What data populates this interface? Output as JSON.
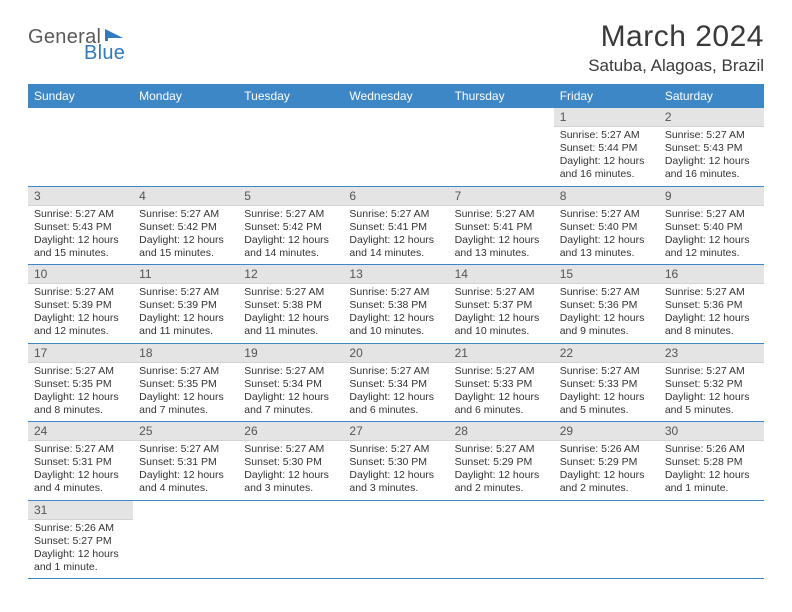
{
  "logo": {
    "part1": "General",
    "part2": "Blue"
  },
  "header": {
    "month_title": "March 2024",
    "location": "Satuba, Alagoas, Brazil"
  },
  "colors": {
    "header_bg": "#3d87c7",
    "day_num_bg": "#e4e4e4",
    "border": "#3d87c7",
    "logo_gray": "#5a5a5a",
    "logo_blue": "#2f7ac0"
  },
  "weekdays": [
    "Sunday",
    "Monday",
    "Tuesday",
    "Wednesday",
    "Thursday",
    "Friday",
    "Saturday"
  ],
  "weeks": [
    [
      null,
      null,
      null,
      null,
      null,
      {
        "n": "1",
        "sunrise": "Sunrise: 5:27 AM",
        "sunset": "Sunset: 5:44 PM",
        "daylight": "Daylight: 12 hours and 16 minutes."
      },
      {
        "n": "2",
        "sunrise": "Sunrise: 5:27 AM",
        "sunset": "Sunset: 5:43 PM",
        "daylight": "Daylight: 12 hours and 16 minutes."
      }
    ],
    [
      {
        "n": "3",
        "sunrise": "Sunrise: 5:27 AM",
        "sunset": "Sunset: 5:43 PM",
        "daylight": "Daylight: 12 hours and 15 minutes."
      },
      {
        "n": "4",
        "sunrise": "Sunrise: 5:27 AM",
        "sunset": "Sunset: 5:42 PM",
        "daylight": "Daylight: 12 hours and 15 minutes."
      },
      {
        "n": "5",
        "sunrise": "Sunrise: 5:27 AM",
        "sunset": "Sunset: 5:42 PM",
        "daylight": "Daylight: 12 hours and 14 minutes."
      },
      {
        "n": "6",
        "sunrise": "Sunrise: 5:27 AM",
        "sunset": "Sunset: 5:41 PM",
        "daylight": "Daylight: 12 hours and 14 minutes."
      },
      {
        "n": "7",
        "sunrise": "Sunrise: 5:27 AM",
        "sunset": "Sunset: 5:41 PM",
        "daylight": "Daylight: 12 hours and 13 minutes."
      },
      {
        "n": "8",
        "sunrise": "Sunrise: 5:27 AM",
        "sunset": "Sunset: 5:40 PM",
        "daylight": "Daylight: 12 hours and 13 minutes."
      },
      {
        "n": "9",
        "sunrise": "Sunrise: 5:27 AM",
        "sunset": "Sunset: 5:40 PM",
        "daylight": "Daylight: 12 hours and 12 minutes."
      }
    ],
    [
      {
        "n": "10",
        "sunrise": "Sunrise: 5:27 AM",
        "sunset": "Sunset: 5:39 PM",
        "daylight": "Daylight: 12 hours and 12 minutes."
      },
      {
        "n": "11",
        "sunrise": "Sunrise: 5:27 AM",
        "sunset": "Sunset: 5:39 PM",
        "daylight": "Daylight: 12 hours and 11 minutes."
      },
      {
        "n": "12",
        "sunrise": "Sunrise: 5:27 AM",
        "sunset": "Sunset: 5:38 PM",
        "daylight": "Daylight: 12 hours and 11 minutes."
      },
      {
        "n": "13",
        "sunrise": "Sunrise: 5:27 AM",
        "sunset": "Sunset: 5:38 PM",
        "daylight": "Daylight: 12 hours and 10 minutes."
      },
      {
        "n": "14",
        "sunrise": "Sunrise: 5:27 AM",
        "sunset": "Sunset: 5:37 PM",
        "daylight": "Daylight: 12 hours and 10 minutes."
      },
      {
        "n": "15",
        "sunrise": "Sunrise: 5:27 AM",
        "sunset": "Sunset: 5:36 PM",
        "daylight": "Daylight: 12 hours and 9 minutes."
      },
      {
        "n": "16",
        "sunrise": "Sunrise: 5:27 AM",
        "sunset": "Sunset: 5:36 PM",
        "daylight": "Daylight: 12 hours and 8 minutes."
      }
    ],
    [
      {
        "n": "17",
        "sunrise": "Sunrise: 5:27 AM",
        "sunset": "Sunset: 5:35 PM",
        "daylight": "Daylight: 12 hours and 8 minutes."
      },
      {
        "n": "18",
        "sunrise": "Sunrise: 5:27 AM",
        "sunset": "Sunset: 5:35 PM",
        "daylight": "Daylight: 12 hours and 7 minutes."
      },
      {
        "n": "19",
        "sunrise": "Sunrise: 5:27 AM",
        "sunset": "Sunset: 5:34 PM",
        "daylight": "Daylight: 12 hours and 7 minutes."
      },
      {
        "n": "20",
        "sunrise": "Sunrise: 5:27 AM",
        "sunset": "Sunset: 5:34 PM",
        "daylight": "Daylight: 12 hours and 6 minutes."
      },
      {
        "n": "21",
        "sunrise": "Sunrise: 5:27 AM",
        "sunset": "Sunset: 5:33 PM",
        "daylight": "Daylight: 12 hours and 6 minutes."
      },
      {
        "n": "22",
        "sunrise": "Sunrise: 5:27 AM",
        "sunset": "Sunset: 5:33 PM",
        "daylight": "Daylight: 12 hours and 5 minutes."
      },
      {
        "n": "23",
        "sunrise": "Sunrise: 5:27 AM",
        "sunset": "Sunset: 5:32 PM",
        "daylight": "Daylight: 12 hours and 5 minutes."
      }
    ],
    [
      {
        "n": "24",
        "sunrise": "Sunrise: 5:27 AM",
        "sunset": "Sunset: 5:31 PM",
        "daylight": "Daylight: 12 hours and 4 minutes."
      },
      {
        "n": "25",
        "sunrise": "Sunrise: 5:27 AM",
        "sunset": "Sunset: 5:31 PM",
        "daylight": "Daylight: 12 hours and 4 minutes."
      },
      {
        "n": "26",
        "sunrise": "Sunrise: 5:27 AM",
        "sunset": "Sunset: 5:30 PM",
        "daylight": "Daylight: 12 hours and 3 minutes."
      },
      {
        "n": "27",
        "sunrise": "Sunrise: 5:27 AM",
        "sunset": "Sunset: 5:30 PM",
        "daylight": "Daylight: 12 hours and 3 minutes."
      },
      {
        "n": "28",
        "sunrise": "Sunrise: 5:27 AM",
        "sunset": "Sunset: 5:29 PM",
        "daylight": "Daylight: 12 hours and 2 minutes."
      },
      {
        "n": "29",
        "sunrise": "Sunrise: 5:26 AM",
        "sunset": "Sunset: 5:29 PM",
        "daylight": "Daylight: 12 hours and 2 minutes."
      },
      {
        "n": "30",
        "sunrise": "Sunrise: 5:26 AM",
        "sunset": "Sunset: 5:28 PM",
        "daylight": "Daylight: 12 hours and 1 minute."
      }
    ],
    [
      {
        "n": "31",
        "sunrise": "Sunrise: 5:26 AM",
        "sunset": "Sunset: 5:27 PM",
        "daylight": "Daylight: 12 hours and 1 minute."
      },
      null,
      null,
      null,
      null,
      null,
      null
    ]
  ]
}
